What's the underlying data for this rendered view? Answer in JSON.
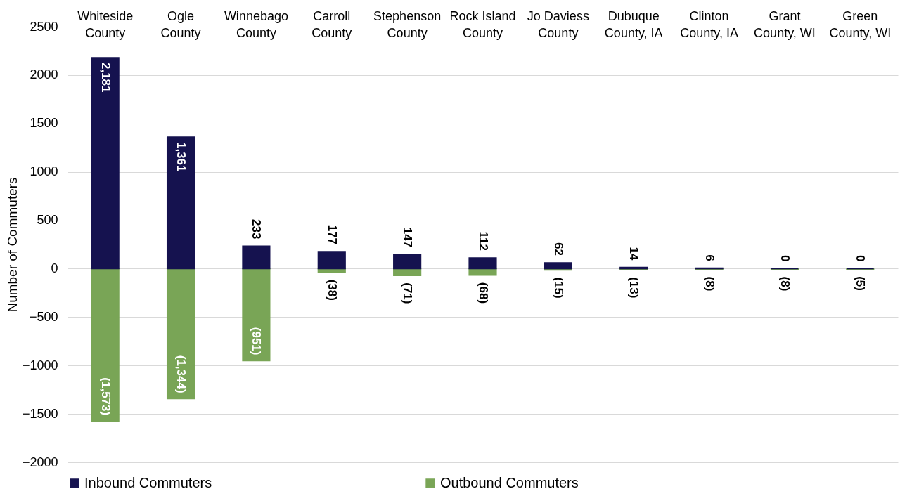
{
  "chart_data": {
    "type": "bar",
    "stacked": true,
    "ylabel": "Number of Commuters",
    "categories": [
      "Whiteside County",
      "Ogle County",
      "Winnebago County",
      "Carroll County",
      "Stephenson County",
      "Rock Island County",
      "Jo Daviess County",
      "Dubuque County, IA",
      "Clinton County, IA",
      "Grant County, WI",
      "Green County, WI"
    ],
    "series": [
      {
        "name": "Inbound Commuters",
        "color": "#15124f",
        "values": [
          2181,
          1361,
          233,
          177,
          147,
          112,
          62,
          14,
          6,
          0,
          0
        ],
        "value_labels": [
          "2,181",
          "1,361",
          "233",
          "177",
          "147",
          "112",
          "62",
          "14",
          "6",
          "0",
          "0"
        ]
      },
      {
        "name": "Outbound Commuters",
        "color": "#79a556",
        "values": [
          -1573,
          -1344,
          -951,
          -38,
          -71,
          -68,
          -15,
          -13,
          -8,
          -8,
          -5
        ],
        "value_labels": [
          "(1,573)",
          "(1,344)",
          "(951)",
          "(38)",
          "(71)",
          "(68)",
          "(15)",
          "(13)",
          "(8)",
          "(8)",
          "(5)"
        ]
      }
    ],
    "ylim": [
      -2000,
      2500
    ],
    "yticks": [
      -2000,
      -1500,
      -1000,
      -500,
      0,
      500,
      1000,
      1500,
      2000,
      2500
    ],
    "grid": "y",
    "legend": "bottom"
  }
}
